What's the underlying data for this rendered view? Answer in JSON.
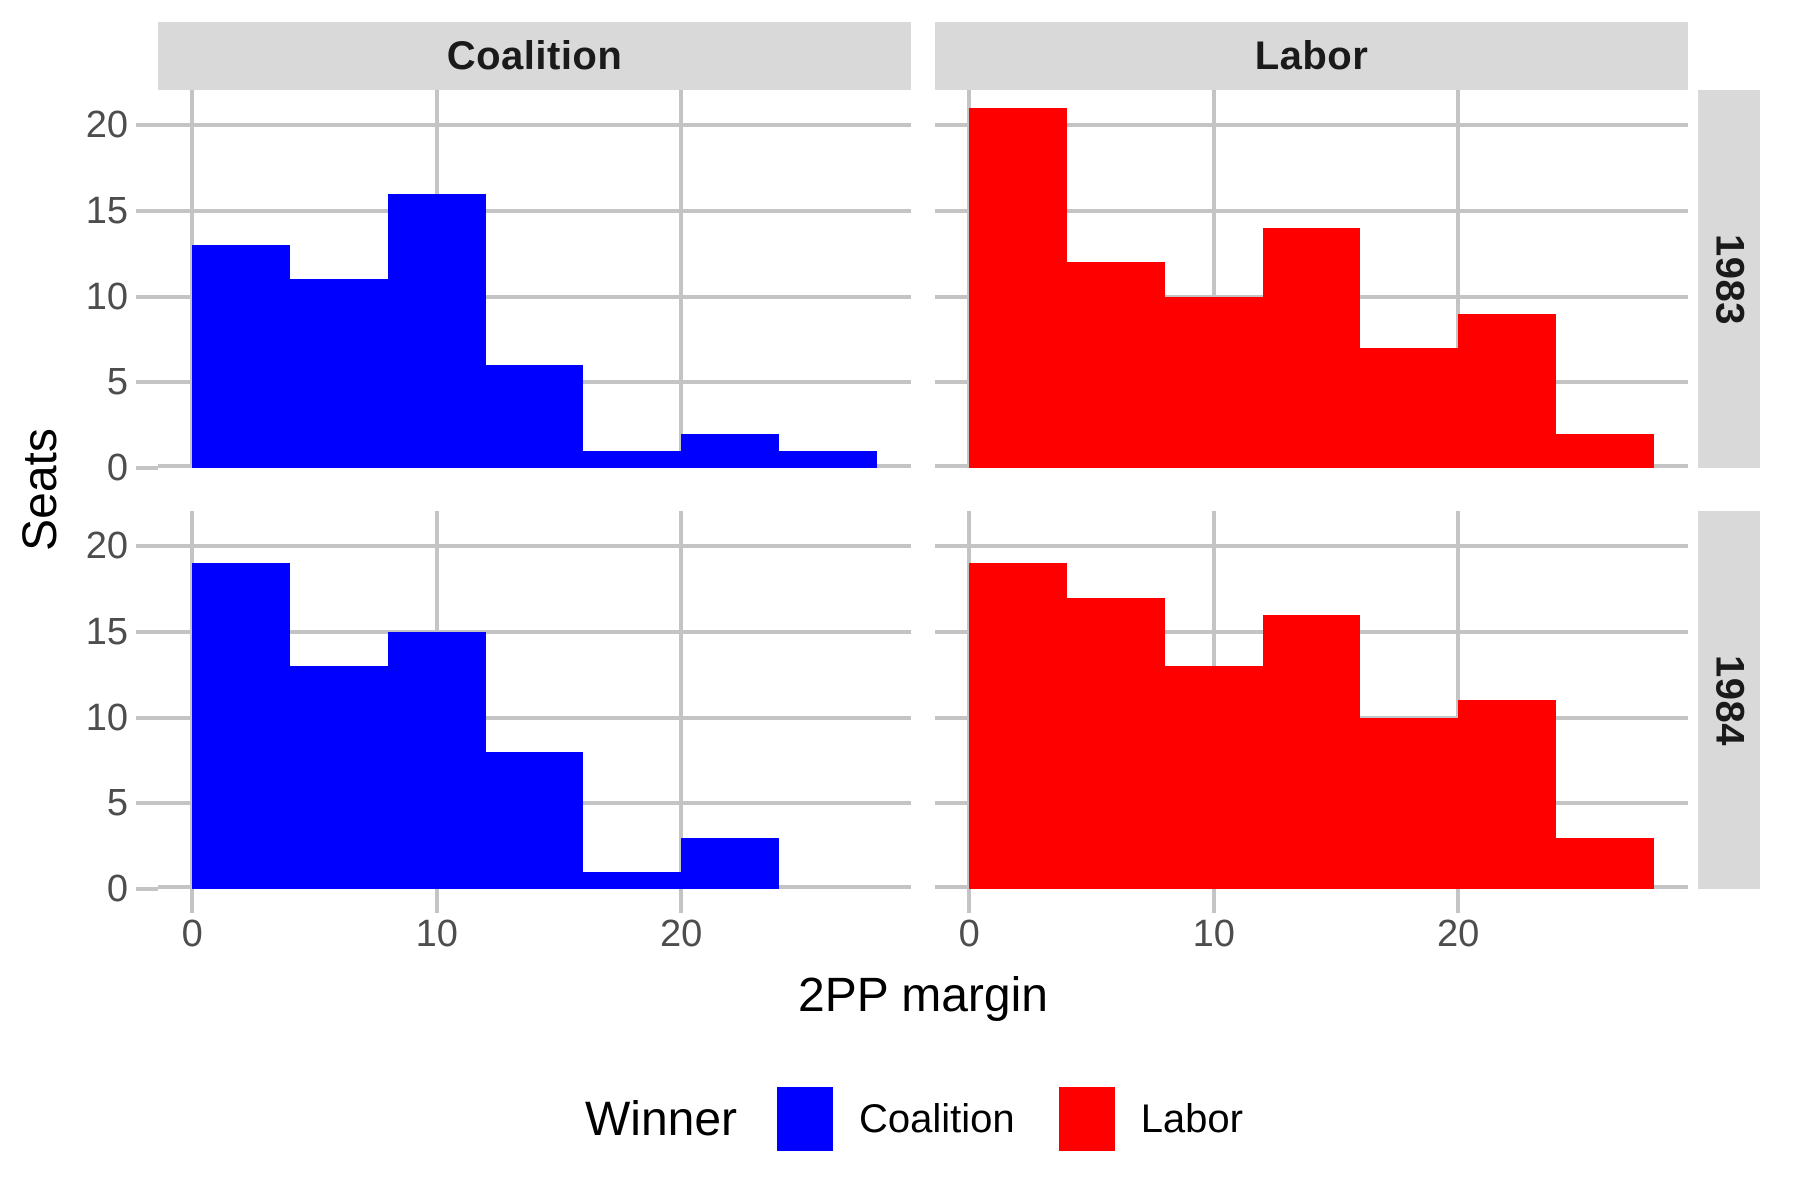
{
  "chart_data": {
    "type": "bar",
    "subtype": "faceted-histogram",
    "facet": {
      "cols": [
        "Coalition",
        "Labor"
      ],
      "rows": [
        "1983",
        "1984"
      ]
    },
    "xlabel": "2PP margin",
    "ylabel": "Seats",
    "x_ticks": [
      0,
      10,
      20
    ],
    "y_ticks": [
      0,
      5,
      10,
      15,
      20
    ],
    "x_domain": [
      -1.4,
      29.4
    ],
    "y_domain": [
      0,
      22.05
    ],
    "bin_edges": [
      0,
      4,
      8,
      12,
      16,
      20,
      24,
      28
    ],
    "series": [
      {
        "col": "Coalition",
        "row": "1983",
        "color": "#0000FF",
        "values": [
          13,
          11,
          16,
          6,
          1,
          2,
          1
        ]
      },
      {
        "col": "Labor",
        "row": "1983",
        "color": "#FF0000",
        "values": [
          21,
          12,
          10,
          14,
          7,
          9,
          2
        ]
      },
      {
        "col": "Coalition",
        "row": "1984",
        "color": "#0000FF",
        "values": [
          19,
          13,
          15,
          8,
          1,
          3,
          0
        ]
      },
      {
        "col": "Labor",
        "row": "1984",
        "color": "#FF0000",
        "values": [
          19,
          17,
          13,
          16,
          10,
          11,
          3
        ]
      }
    ],
    "legend": {
      "title": "Winner",
      "entries": [
        {
          "label": "Coalition",
          "color": "#0000FF"
        },
        {
          "label": "Labor",
          "color": "#FF0000"
        }
      ]
    },
    "colors": {
      "background": "#FFFFFF",
      "strip_bg": "#D9D9D9",
      "grid": "#C4C4C4",
      "tick_label": "#4D4D4D",
      "axis_title": "#000000"
    }
  }
}
